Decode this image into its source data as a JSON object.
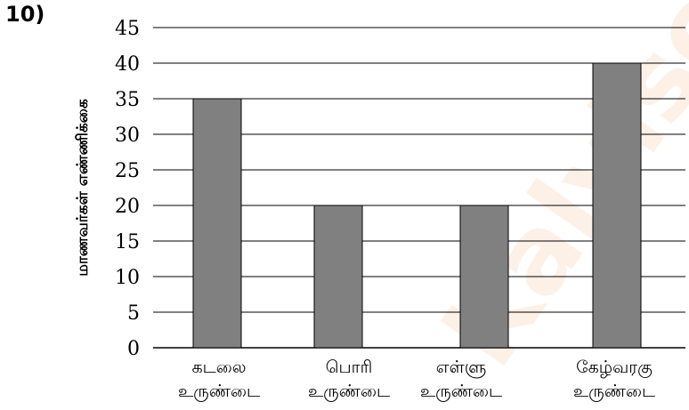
{
  "question_number": "10)",
  "chart_data": {
    "type": "bar",
    "categories": [
      [
        "கடலை",
        "உருண்டை"
      ],
      [
        "பொரி",
        "உருண்டை"
      ],
      [
        "எள்ளு",
        "உருண்டை"
      ],
      [
        "கேழ்வரகு",
        "உருண்டை"
      ]
    ],
    "values": [
      35,
      20,
      20,
      40
    ],
    "ylabel": "மாணவர்கள் எண்ணிக்கை",
    "xlabel": "",
    "ylim": [
      0,
      45
    ],
    "yticks": [
      0,
      5,
      10,
      15,
      20,
      25,
      30,
      35,
      40,
      45
    ],
    "grid": true,
    "legend": "none",
    "bar_color": "#808080"
  },
  "watermark": "Kalvisolai"
}
